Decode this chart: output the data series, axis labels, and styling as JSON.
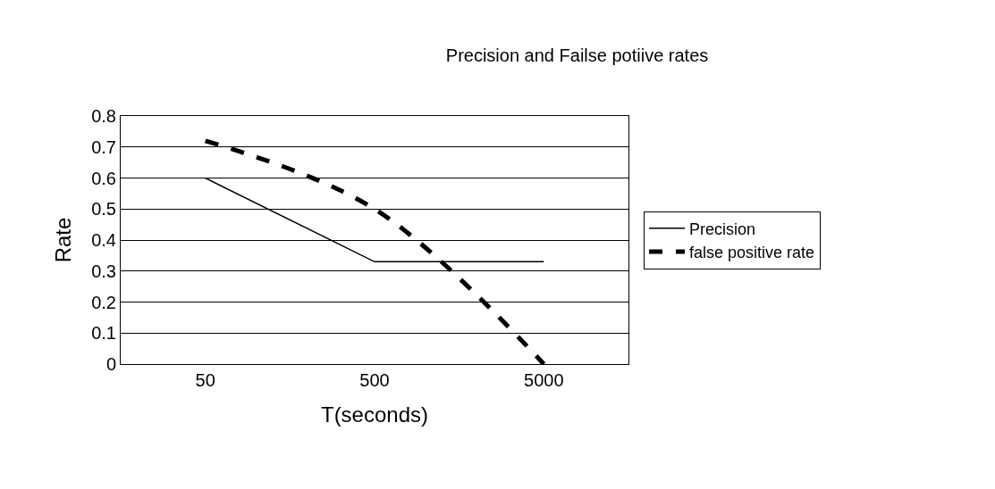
{
  "chart_data": {
    "type": "line",
    "title": "Precision and Failse potiive rates",
    "xlabel": "T(seconds)",
    "ylabel": "Rate",
    "categories": [
      "50",
      "500",
      "5000"
    ],
    "series": [
      {
        "name": "Precision",
        "color": "#000000",
        "values": [
          0.6,
          0.33,
          0.33
        ],
        "line_style": "solid"
      },
      {
        "name": "false positive rate",
        "color": "#000000",
        "values": [
          0.72,
          0.5,
          0
        ],
        "line_style": "dashed"
      }
    ],
    "ylim": [
      0,
      0.8
    ],
    "yticks": [
      0,
      0.1,
      0.2,
      0.3,
      0.4,
      0.5,
      0.6,
      0.7,
      0.8
    ],
    "grid": "y",
    "legend": "right",
    "marker": "none"
  }
}
